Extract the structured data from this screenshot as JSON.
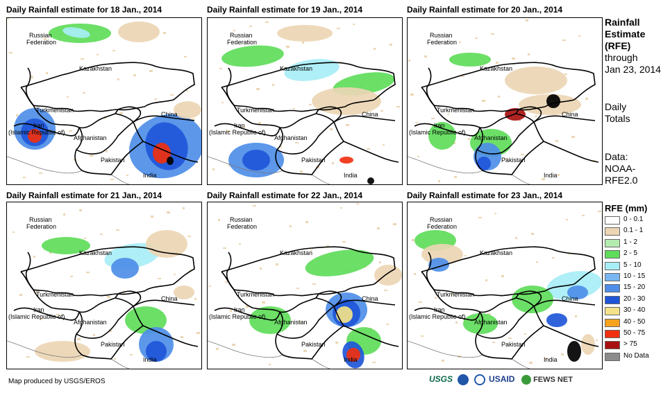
{
  "panels": [
    {
      "title": "Daily Rainfall estimate for 18 Jan., 2014"
    },
    {
      "title": "Daily Rainfall estimate for 19 Jan., 2014"
    },
    {
      "title": "Daily Rainfall estimate for 20 Jan., 2014"
    },
    {
      "title": "Daily Rainfall estimate for 21 Jan., 2014"
    },
    {
      "title": "Daily Rainfall estimate for 22 Jan., 2014"
    },
    {
      "title": "Daily Rainfall estimate for 23 Jan., 2014"
    }
  ],
  "country_labels": {
    "russia_1": "Russian",
    "russia_2": "Federation",
    "kazakhstan": "Kazakhstan",
    "turkmenistan": "Turkmenistan",
    "iran_1": "Iran",
    "iran_2": "(Islamic Republic of)",
    "afghanistan": "Afghanistan",
    "pakistan": "Pakistan",
    "china": "China",
    "india": "India"
  },
  "sidebar": {
    "heading_1": "Rainfall",
    "heading_2": "Estimate",
    "heading_3": "(RFE)",
    "through": "through",
    "date": "Jan 23, 2014",
    "daily": "Daily",
    "totals": "Totals",
    "data_label": "Data:",
    "source_1": "NOAA-",
    "source_2": "RFE2.0"
  },
  "legend": {
    "title": "RFE (mm)",
    "items": [
      {
        "label": "0 - 0.1",
        "color": "#ffffff"
      },
      {
        "label": "0.1 - 1",
        "color": "#ecd6b4"
      },
      {
        "label": "1 - 2",
        "color": "#b4ecb0"
      },
      {
        "label": "2 - 5",
        "color": "#5fdc5a"
      },
      {
        "label": "5 - 10",
        "color": "#a8eef6"
      },
      {
        "label": "10 - 15",
        "color": "#79b6f2"
      },
      {
        "label": "15 - 20",
        "color": "#4e8ee8"
      },
      {
        "label": "20 - 30",
        "color": "#1f56d8"
      },
      {
        "label": "30 - 40",
        "color": "#f4e28a"
      },
      {
        "label": "40 - 50",
        "color": "#f7a21c"
      },
      {
        "label": "50 - 75",
        "color": "#f03010"
      },
      {
        "label": "> 75",
        "color": "#a81010"
      },
      {
        "label": "No Data",
        "color": "#8c8c8c"
      }
    ]
  },
  "footer": {
    "credit": "Map produced by USGS/EROS",
    "logo_usgs": "USGS",
    "logo_usaid": "USAID",
    "logo_fews": "FEWS NET"
  }
}
